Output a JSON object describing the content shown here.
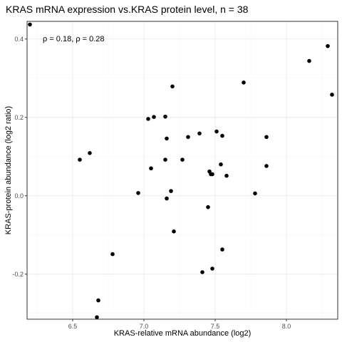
{
  "chart_data": {
    "type": "scatter",
    "title": "KRAS mRNA expression vs.KRAS protein level, n = 38",
    "xlabel": "KRAS-relative mRNA abundance (log2)",
    "ylabel": "KRAS-protein abundance (log2 ratio)",
    "annotation": "ρ = 0.18, ρ = 0.28",
    "xlim": [
      6.18,
      8.36
    ],
    "ylim": [
      -0.315,
      0.445
    ],
    "xticks": [
      6.5,
      7.0,
      7.5,
      8.0
    ],
    "xtick_labels": [
      "6.5",
      "7.0",
      "7.5",
      "8.0"
    ],
    "yticks": [
      -0.2,
      0.0,
      0.2,
      0.4
    ],
    "ytick_labels": [
      "-0.2",
      "0.0",
      "0.2",
      "0.4"
    ],
    "grid": true,
    "colors": {
      "point": "#000000",
      "panel_border": "#333333",
      "grid_major": "#ebebeb",
      "grid_minor": "#f5f5f5",
      "background": "#ffffff"
    },
    "points": [
      {
        "x": 6.2,
        "y": 0.437
      },
      {
        "x": 6.55,
        "y": 0.092
      },
      {
        "x": 6.62,
        "y": 0.109
      },
      {
        "x": 6.67,
        "y": -0.31
      },
      {
        "x": 6.68,
        "y": -0.267
      },
      {
        "x": 6.78,
        "y": -0.149
      },
      {
        "x": 6.96,
        "y": 0.007
      },
      {
        "x": 7.03,
        "y": 0.196
      },
      {
        "x": 7.05,
        "y": 0.07
      },
      {
        "x": 7.07,
        "y": 0.201
      },
      {
        "x": 7.15,
        "y": 0.202
      },
      {
        "x": 7.15,
        "y": 0.092
      },
      {
        "x": 7.16,
        "y": 0.146
      },
      {
        "x": 7.16,
        "y": -0.007
      },
      {
        "x": 7.19,
        "y": 0.012
      },
      {
        "x": 7.2,
        "y": 0.279
      },
      {
        "x": 7.21,
        "y": -0.091
      },
      {
        "x": 7.27,
        "y": 0.092
      },
      {
        "x": 7.31,
        "y": 0.15
      },
      {
        "x": 7.39,
        "y": 0.159
      },
      {
        "x": 7.41,
        "y": -0.195
      },
      {
        "x": 7.45,
        "y": -0.029
      },
      {
        "x": 7.46,
        "y": 0.062
      },
      {
        "x": 7.47,
        "y": 0.055
      },
      {
        "x": 7.48,
        "y": 0.055
      },
      {
        "x": 7.48,
        "y": -0.186
      },
      {
        "x": 7.51,
        "y": 0.164
      },
      {
        "x": 7.54,
        "y": 0.08
      },
      {
        "x": 7.55,
        "y": 0.153
      },
      {
        "x": 7.55,
        "y": -0.137
      },
      {
        "x": 7.58,
        "y": 0.051
      },
      {
        "x": 7.7,
        "y": 0.289
      },
      {
        "x": 7.78,
        "y": 0.006
      },
      {
        "x": 7.86,
        "y": 0.15
      },
      {
        "x": 7.86,
        "y": 0.076
      },
      {
        "x": 8.16,
        "y": 0.344
      },
      {
        "x": 8.29,
        "y": 0.382
      },
      {
        "x": 8.32,
        "y": 0.258
      }
    ]
  }
}
